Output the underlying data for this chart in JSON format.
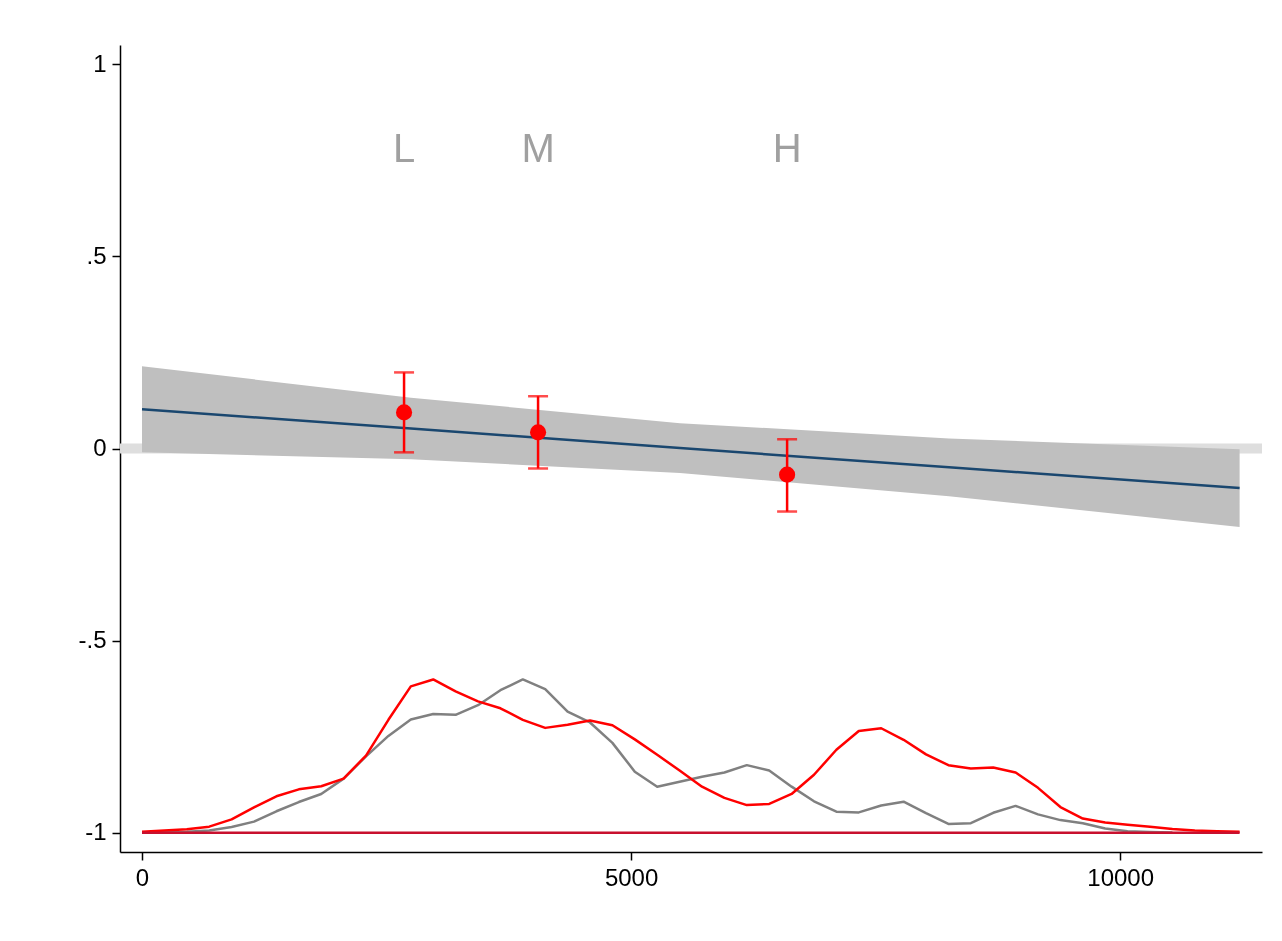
{
  "chart_data": {
    "type": "line",
    "xlim": [
      -225,
      11450
    ],
    "ylim": [
      -1.05,
      1.05
    ],
    "xticks": [
      0,
      5000,
      10000
    ],
    "yticks": [
      {
        "value": -1,
        "label": "-1"
      },
      {
        "value": -0.5,
        "label": "-.5"
      },
      {
        "value": 0,
        "label": "0"
      },
      {
        "value": 0.5,
        "label": ".5"
      },
      {
        "value": 1,
        "label": "1"
      }
    ],
    "grid": false,
    "line_style": "solid",
    "ref_lines": [
      {
        "axis": "y",
        "value": 0,
        "color": "#dedede"
      }
    ],
    "annotations": [
      "L",
      "M",
      "H"
    ],
    "series": [
      {
        "color": "#808080",
        "x": [
          0,
          229,
          458,
          687,
          916,
          1145,
          1374,
          1603,
          1832,
          2061,
          2290,
          2519,
          2748,
          2977,
          3206,
          3435,
          3664,
          3893,
          4122,
          4351,
          4580,
          4809,
          5038,
          5267,
          5496,
          5725,
          5954,
          6183,
          6412,
          6641,
          6870,
          7099,
          7328,
          7557,
          7786,
          8015,
          8244,
          8473,
          8702,
          8931,
          9160,
          9389,
          9618,
          9847,
          10076,
          10305,
          10534
        ],
        "values": [
          -0.999,
          -0.998,
          -0.997,
          -0.994,
          -0.985,
          -0.971,
          -0.944,
          -0.92,
          -0.899,
          -0.859,
          -0.801,
          -0.748,
          -0.705,
          -0.691,
          -0.693,
          -0.668,
          -0.629,
          -0.601,
          -0.626,
          -0.685,
          -0.713,
          -0.766,
          -0.841,
          -0.88,
          -0.867,
          -0.854,
          -0.843,
          -0.824,
          -0.838,
          -0.88,
          -0.918,
          -0.945,
          -0.947,
          -0.929,
          -0.919,
          -0.949,
          -0.977,
          -0.975,
          -0.948,
          -0.93,
          -0.952,
          -0.967,
          -0.975,
          -0.989,
          -0.996,
          -0.998,
          -0.999
        ]
      },
      {
        "color": "#ff0000",
        "x": [
          0,
          229,
          458,
          687,
          916,
          1145,
          1374,
          1603,
          1832,
          2061,
          2290,
          2519,
          2748,
          2977,
          3206,
          3435,
          3664,
          3893,
          4122,
          4351,
          4580,
          4809,
          5038,
          5267,
          5496,
          5725,
          5954,
          6183,
          6412,
          6641,
          6870,
          7099,
          7328,
          7557,
          7786,
          8015,
          8244,
          8473,
          8702,
          8931,
          9160,
          9389,
          9618,
          9847,
          10076,
          10305,
          10534,
          10763,
          10992,
          11221
        ],
        "values": [
          -0.997,
          -0.994,
          -0.991,
          -0.984,
          -0.965,
          -0.934,
          -0.905,
          -0.887,
          -0.879,
          -0.859,
          -0.799,
          -0.706,
          -0.619,
          -0.601,
          -0.632,
          -0.658,
          -0.676,
          -0.706,
          -0.727,
          -0.719,
          -0.708,
          -0.72,
          -0.757,
          -0.797,
          -0.838,
          -0.88,
          -0.909,
          -0.928,
          -0.925,
          -0.899,
          -0.849,
          -0.784,
          -0.735,
          -0.728,
          -0.758,
          -0.796,
          -0.824,
          -0.833,
          -0.83,
          -0.843,
          -0.883,
          -0.933,
          -0.963,
          -0.973,
          -0.979,
          -0.984,
          -0.99,
          -0.994,
          -0.996,
          -0.997
        ]
      },
      {
        "color": "#c8102e",
        "x": [
          0,
          11221
        ],
        "values": [
          -1,
          -1
        ]
      },
      {
        "color": "#1a476f",
        "x": [
          0,
          2750,
          5500,
          8250,
          11221
        ],
        "values": [
          0.102,
          0.052,
          0.001,
          -0.049,
          -0.103
        ],
        "lower": [
          -0.01,
          -0.028,
          -0.064,
          -0.124,
          -0.204
        ],
        "upper": [
          0.214,
          0.132,
          0.066,
          0.026,
          -0.002
        ]
      },
      {
        "type": "scatter",
        "color": "#ff0000",
        "marker": "circle",
        "x": [
          2679,
          4049,
          6595
        ],
        "values": [
          0.094,
          0.042,
          -0.068
        ],
        "errors": [
          [
            -0.01,
            0.198
          ],
          [
            -0.052,
            0.136
          ],
          [
            -0.164,
            0.024
          ]
        ]
      }
    ]
  }
}
